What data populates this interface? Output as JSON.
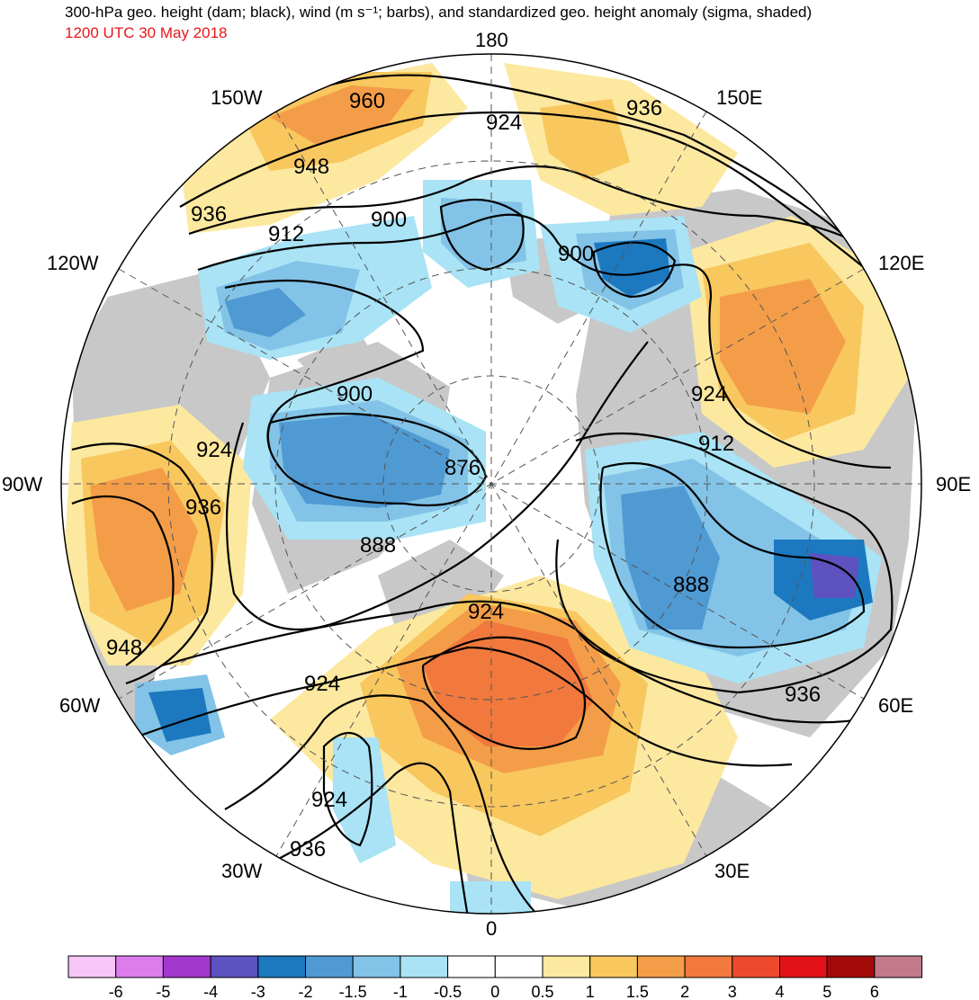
{
  "header": {
    "title": "300-hPa geo. height (dam; black), wind (m s⁻¹; barbs), and standardized geo. height anomaly (sigma, shaded)",
    "valid_time": "1200 UTC 30 May 2018"
  },
  "longitude_labels": {
    "top": "180",
    "bottom": "0",
    "left": "90W",
    "right": "90E",
    "upper_left_1": "150W",
    "upper_left_2": "120W",
    "upper_right_1": "150E",
    "upper_right_2": "120E",
    "lower_left_1": "60W",
    "lower_left_2": "30W",
    "lower_right_1": "60E",
    "lower_right_2": "30E"
  },
  "contour_labels": [
    "960",
    "948",
    "936",
    "924",
    "912",
    "900",
    "936",
    "900",
    "924",
    "912",
    "900",
    "876",
    "888",
    "888",
    "924",
    "924",
    "936",
    "948",
    "924",
    "936",
    "924",
    "936",
    "924"
  ],
  "colorbar": {
    "colors": [
      "#f6c6f6",
      "#dd7ded",
      "#a437cd",
      "#5e51c0",
      "#1c79c0",
      "#4f9ad3",
      "#82c3e7",
      "#a9e3f5",
      "#ffffff",
      "#ffffff",
      "#fce89f",
      "#f8c75e",
      "#f49d48",
      "#f1793d",
      "#ed4a2d",
      "#e31219",
      "#a30b0b",
      "#c27a8a"
    ],
    "tick_labels": [
      "-6",
      "-5",
      "-4",
      "-3",
      "-2",
      "-1.5",
      "-1",
      "-0.5",
      "0",
      "0.5",
      "1",
      "1.5",
      "2",
      "3",
      "4",
      "5",
      "6"
    ]
  },
  "palette": {
    "land": "#c8c8c8",
    "ocean": "#ffffff",
    "contour": "#000000",
    "graticule": "#555555"
  }
}
